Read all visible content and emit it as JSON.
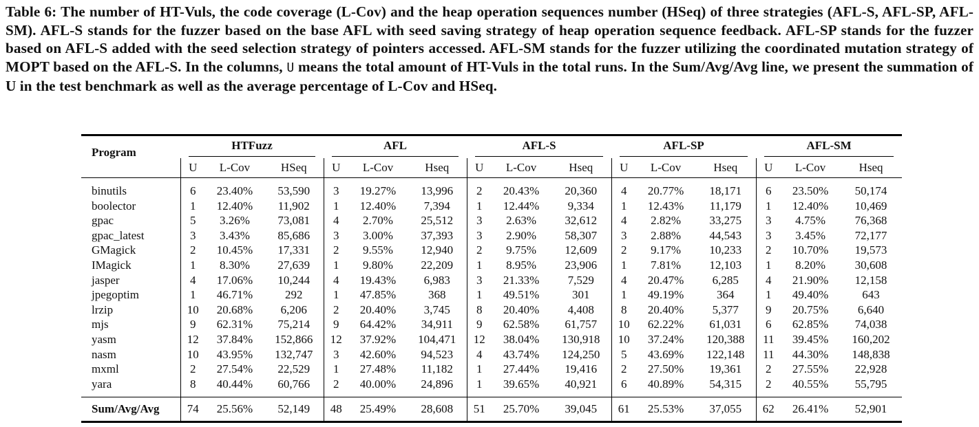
{
  "caption": {
    "label": "Table 6:",
    "text_before_u": "The number of HT-Vuls, the code coverage (L-Cov) and the heap operation sequences number (HSeq) of three strategies (AFL-S, AFL-SP, AFL-SM). AFL-S stands for the fuzzer based on the base AFL with seed saving strategy of heap operation sequence feedback. AFL-SP stands for the fuzzer based on AFL-S added with the seed selection strategy of pointers accessed. AFL-SM stands for the fuzzer utilizing the coordinated mutation strategy of MOPT based on the AFL-S. In the columns,",
    "u_symbol": "U",
    "text_after_u": "means the total amount of HT-Vuls in the total runs. In the Sum/Avg/Avg line, we present the summation of U in the test benchmark as well as the average percentage of L-Cov and HSeq."
  },
  "table": {
    "program_header": "Program",
    "groups": [
      {
        "name": "HTFuzz",
        "cols": [
          "U",
          "L-Cov",
          "HSeq"
        ]
      },
      {
        "name": "AFL",
        "cols": [
          "U",
          "L-Cov",
          "Hseq"
        ]
      },
      {
        "name": "AFL-S",
        "cols": [
          "U",
          "L-Cov",
          "Hseq"
        ]
      },
      {
        "name": "AFL-SP",
        "cols": [
          "U",
          "L-Cov",
          "Hseq"
        ]
      },
      {
        "name": "AFL-SM",
        "cols": [
          "U",
          "L-Cov",
          "Hseq"
        ]
      }
    ],
    "rows": [
      {
        "program": "binutils",
        "values": [
          "6",
          "23.40%",
          "53,590",
          "3",
          "19.27%",
          "13,996",
          "2",
          "20.43%",
          "20,360",
          "4",
          "20.77%",
          "18,171",
          "6",
          "23.50%",
          "50,174"
        ]
      },
      {
        "program": "boolector",
        "values": [
          "1",
          "12.40%",
          "11,902",
          "1",
          "12.40%",
          "7,394",
          "1",
          "12.44%",
          "9,334",
          "1",
          "12.43%",
          "11,179",
          "1",
          "12.40%",
          "10,469"
        ]
      },
      {
        "program": "gpac",
        "values": [
          "5",
          "3.26%",
          "73,081",
          "4",
          "2.70%",
          "25,512",
          "3",
          "2.63%",
          "32,612",
          "4",
          "2.82%",
          "33,275",
          "3",
          "4.75%",
          "76,368"
        ]
      },
      {
        "program": "gpac_latest",
        "values": [
          "3",
          "3.43%",
          "85,686",
          "3",
          "3.00%",
          "37,393",
          "3",
          "2.90%",
          "58,307",
          "3",
          "2.88%",
          "44,543",
          "3",
          "3.45%",
          "72,177"
        ]
      },
      {
        "program": "GMagick",
        "values": [
          "2",
          "10.45%",
          "17,331",
          "2",
          "9.55%",
          "12,940",
          "2",
          "9.75%",
          "12,609",
          "2",
          "9.17%",
          "10,233",
          "2",
          "10.70%",
          "19,573"
        ]
      },
      {
        "program": "IMagick",
        "values": [
          "1",
          "8.30%",
          "27,639",
          "1",
          "9.80%",
          "22,209",
          "1",
          "8.95%",
          "23,906",
          "1",
          "7.81%",
          "12,103",
          "1",
          "8.20%",
          "30,608"
        ]
      },
      {
        "program": "jasper",
        "values": [
          "4",
          "17.06%",
          "10,244",
          "4",
          "19.43%",
          "6,983",
          "3",
          "21.33%",
          "7,529",
          "4",
          "20.47%",
          "6,285",
          "4",
          "21.90%",
          "12,158"
        ]
      },
      {
        "program": "jpegoptim",
        "values": [
          "1",
          "46.71%",
          "292",
          "1",
          "47.85%",
          "368",
          "1",
          "49.51%",
          "301",
          "1",
          "49.19%",
          "364",
          "1",
          "49.40%",
          "643"
        ]
      },
      {
        "program": "lrzip",
        "values": [
          "10",
          "20.68%",
          "6,206",
          "2",
          "20.40%",
          "3,745",
          "8",
          "20.40%",
          "4,408",
          "8",
          "20.40%",
          "5,377",
          "9",
          "20.75%",
          "6,640"
        ]
      },
      {
        "program": "mjs",
        "values": [
          "9",
          "62.31%",
          "75,214",
          "9",
          "64.42%",
          "34,911",
          "9",
          "62.58%",
          "61,757",
          "10",
          "62.22%",
          "61,031",
          "6",
          "62.85%",
          "74,038"
        ]
      },
      {
        "program": "yasm",
        "values": [
          "12",
          "37.84%",
          "152,866",
          "12",
          "37.92%",
          "104,471",
          "12",
          "38.04%",
          "130,918",
          "10",
          "37.24%",
          "120,388",
          "11",
          "39.45%",
          "160,202"
        ]
      },
      {
        "program": "nasm",
        "values": [
          "10",
          "43.95%",
          "132,747",
          "3",
          "42.60%",
          "94,523",
          "4",
          "43.74%",
          "124,250",
          "5",
          "43.69%",
          "122,148",
          "11",
          "44.30%",
          "148,838"
        ]
      },
      {
        "program": "mxml",
        "values": [
          "2",
          "27.54%",
          "22,529",
          "1",
          "27.48%",
          "11,182",
          "1",
          "27.44%",
          "19,416",
          "2",
          "27.50%",
          "19,361",
          "2",
          "27.55%",
          "22,928"
        ]
      },
      {
        "program": "yara",
        "values": [
          "8",
          "40.44%",
          "60,766",
          "2",
          "40.00%",
          "24,896",
          "1",
          "39.65%",
          "40,921",
          "6",
          "40.89%",
          "54,315",
          "2",
          "40.55%",
          "55,795"
        ]
      }
    ],
    "summary": {
      "program": "Sum/Avg/Avg",
      "values": [
        "74",
        "25.56%",
        "52,149",
        "48",
        "25.49%",
        "28,608",
        "51",
        "25.70%",
        "39,045",
        "61",
        "25.53%",
        "37,055",
        "62",
        "26.41%",
        "52,901"
      ]
    }
  }
}
